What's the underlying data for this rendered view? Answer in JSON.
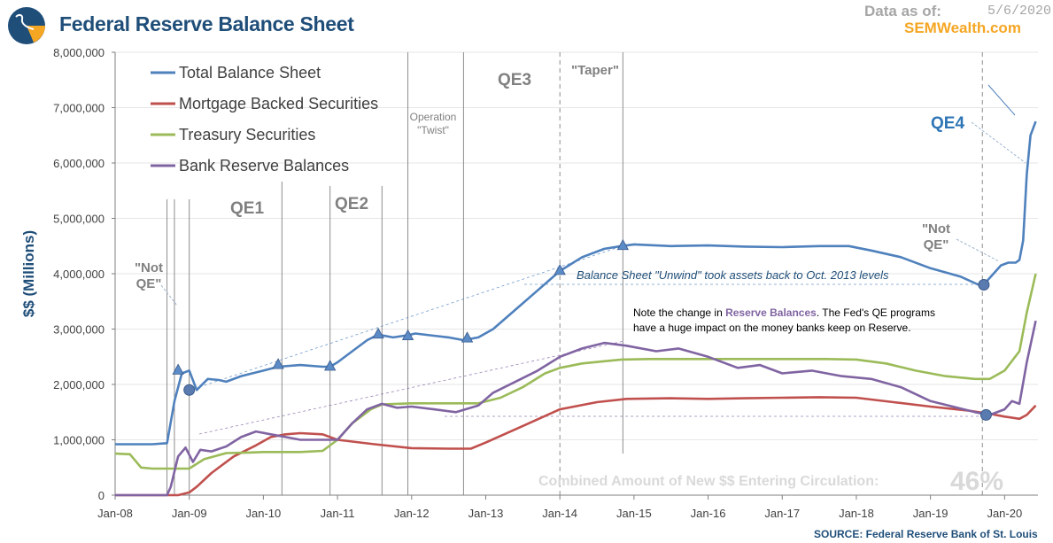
{
  "header": {
    "title": "Federal Reserve Balance Sheet",
    "data_as_of_label": "Data as of:",
    "data_as_of_date": "5/6/2020",
    "brand": "SEMWealth.com",
    "source": "SOURCE:  Federal Reserve Bank of St. Louis"
  },
  "chart_data": {
    "type": "line",
    "title": "Federal Reserve Balance Sheet",
    "xlabel": "",
    "ylabel": "$$ (Millions)",
    "ylim": [
      0,
      8000000
    ],
    "xlim": [
      2008.0,
      2020.45
    ],
    "yticks": [
      0,
      1000000,
      2000000,
      3000000,
      4000000,
      5000000,
      6000000,
      7000000,
      8000000
    ],
    "ytick_labels": [
      "0",
      "1,000,000",
      "2,000,000",
      "3,000,000",
      "4,000,000",
      "5,000,000",
      "6,000,000",
      "7,000,000",
      "8,000,000"
    ],
    "xtick_labels": [
      "Jan-08",
      "Jan-09",
      "Jan-10",
      "Jan-11",
      "Jan-12",
      "Jan-13",
      "Jan-14",
      "Jan-15",
      "Jan-16",
      "Jan-17",
      "Jan-18",
      "Jan-19",
      "Jan-20"
    ],
    "legend_position": "top-left",
    "series": [
      {
        "name": "Total Balance Sheet",
        "color": "#4F81BD",
        "x": [
          2008.0,
          2008.5,
          2008.7,
          2008.8,
          2008.9,
          2009.0,
          2009.1,
          2009.25,
          2009.4,
          2009.5,
          2009.7,
          2009.85,
          2010.0,
          2010.2,
          2010.5,
          2010.8,
          2010.9,
          2011.0,
          2011.2,
          2011.4,
          2011.55,
          2011.75,
          2011.95,
          2012.05,
          2012.3,
          2012.5,
          2012.7,
          2012.9,
          2013.1,
          2013.4,
          2013.7,
          2014.0,
          2014.3,
          2014.6,
          2014.83,
          2015.0,
          2015.5,
          2016.0,
          2016.5,
          2017.0,
          2017.5,
          2017.9,
          2018.2,
          2018.6,
          2019.0,
          2019.4,
          2019.65,
          2019.75,
          2019.85,
          2019.95,
          2020.05,
          2020.15,
          2020.2,
          2020.25,
          2020.3,
          2020.35,
          2020.42
        ],
        "values": [
          920000,
          920000,
          940000,
          1700000,
          2200000,
          2250000,
          1900000,
          2100000,
          2080000,
          2050000,
          2150000,
          2200000,
          2250000,
          2320000,
          2350000,
          2320000,
          2320000,
          2400000,
          2600000,
          2800000,
          2900000,
          2850000,
          2890000,
          2920000,
          2880000,
          2850000,
          2800000,
          2850000,
          3000000,
          3350000,
          3700000,
          4050000,
          4300000,
          4450000,
          4500000,
          4530000,
          4500000,
          4510000,
          4490000,
          4480000,
          4500000,
          4500000,
          4420000,
          4300000,
          4100000,
          3950000,
          3800000,
          3850000,
          4000000,
          4150000,
          4200000,
          4200000,
          4250000,
          4600000,
          5800000,
          6500000,
          6750000
        ]
      },
      {
        "name": "Mortgage Backed Securities",
        "color": "#C0504D",
        "x": [
          2008.0,
          2008.85,
          2009.0,
          2009.1,
          2009.3,
          2009.6,
          2009.9,
          2010.1,
          2010.3,
          2010.5,
          2010.8,
          2011.0,
          2011.5,
          2012.0,
          2012.5,
          2012.8,
          2013.0,
          2013.5,
          2014.0,
          2014.5,
          2014.9,
          2015.5,
          2016.0,
          2016.5,
          2017.0,
          2017.5,
          2018.0,
          2018.5,
          2019.0,
          2019.5,
          2019.8,
          2020.0,
          2020.2,
          2020.3,
          2020.42
        ],
        "values": [
          0,
          0,
          50000,
          150000,
          400000,
          700000,
          900000,
          1050000,
          1100000,
          1120000,
          1100000,
          1000000,
          920000,
          850000,
          840000,
          840000,
          950000,
          1250000,
          1550000,
          1680000,
          1740000,
          1750000,
          1740000,
          1750000,
          1760000,
          1770000,
          1760000,
          1680000,
          1600000,
          1530000,
          1470000,
          1420000,
          1380000,
          1450000,
          1620000
        ]
      },
      {
        "name": "Treasury Securities",
        "color": "#9BBB59",
        "x": [
          2008.0,
          2008.2,
          2008.35,
          2008.5,
          2008.7,
          2009.0,
          2009.2,
          2009.5,
          2009.8,
          2010.0,
          2010.5,
          2010.8,
          2011.0,
          2011.2,
          2011.45,
          2011.6,
          2012.0,
          2012.5,
          2012.9,
          2013.2,
          2013.5,
          2013.8,
          2014.0,
          2014.3,
          2014.6,
          2014.83,
          2015.2,
          2016.0,
          2017.0,
          2017.6,
          2018.0,
          2018.4,
          2018.8,
          2019.2,
          2019.6,
          2019.8,
          2020.0,
          2020.2,
          2020.3,
          2020.42
        ],
        "values": [
          750000,
          740000,
          500000,
          480000,
          480000,
          480000,
          650000,
          760000,
          770000,
          780000,
          780000,
          800000,
          1000000,
          1300000,
          1550000,
          1640000,
          1660000,
          1660000,
          1660000,
          1760000,
          1950000,
          2200000,
          2300000,
          2380000,
          2420000,
          2450000,
          2460000,
          2460000,
          2460000,
          2460000,
          2450000,
          2380000,
          2250000,
          2150000,
          2100000,
          2100000,
          2250000,
          2600000,
          3300000,
          4000000
        ]
      },
      {
        "name": "Bank Reserve Balances",
        "color": "#8064A2",
        "x": [
          2008.0,
          2008.7,
          2008.75,
          2008.85,
          2008.95,
          2009.05,
          2009.15,
          2009.3,
          2009.5,
          2009.7,
          2009.9,
          2010.1,
          2010.3,
          2010.5,
          2010.8,
          2011.0,
          2011.2,
          2011.4,
          2011.6,
          2011.8,
          2012.0,
          2012.3,
          2012.6,
          2012.9,
          2013.1,
          2013.4,
          2013.7,
          2014.0,
          2014.3,
          2014.6,
          2014.9,
          2015.3,
          2015.6,
          2016.0,
          2016.4,
          2016.7,
          2017.0,
          2017.4,
          2017.8,
          2018.2,
          2018.6,
          2019.0,
          2019.3,
          2019.6,
          2019.8,
          2020.0,
          2020.1,
          2020.2,
          2020.3,
          2020.42
        ],
        "values": [
          0,
          0,
          150000,
          700000,
          860000,
          600000,
          820000,
          790000,
          880000,
          1050000,
          1150000,
          1100000,
          1050000,
          1000000,
          1000000,
          1000000,
          1300000,
          1550000,
          1650000,
          1580000,
          1600000,
          1550000,
          1500000,
          1620000,
          1850000,
          2050000,
          2250000,
          2500000,
          2650000,
          2750000,
          2700000,
          2600000,
          2650000,
          2500000,
          2300000,
          2350000,
          2200000,
          2250000,
          2150000,
          2100000,
          1950000,
          1700000,
          1600000,
          1500000,
          1450000,
          1550000,
          1700000,
          1650000,
          2400000,
          3150000
        ]
      }
    ],
    "annotations": {
      "qe_labels": [
        "QE1",
        "QE2",
        "QE3",
        "QE4"
      ],
      "twist_label_line1": "Operation",
      "twist_label_line2": "\"Twist\"",
      "taper_label": "\"Taper\"",
      "notqe1_line1": "\"Not",
      "notqe1_line2": "QE\"",
      "notqe2_line1": "\"Not",
      "notqe2_line2": "QE\"",
      "unwind_text": "Balance Sheet \"Unwind\" took assets back to Oct. 2013 levels",
      "note_line1_a": "Note the change in ",
      "note_line1_b": "Reserve Balances",
      "note_line1_c": ". The Fed's QE programs",
      "note_line2": "have a huge impact on the money banks keep on Reserve.",
      "combined_label": "Combined Amount of New $$ Entering Circulation:",
      "combined_value": "46%",
      "event_lines": [
        2008.7,
        2008.8,
        2009.0,
        2010.25,
        2010.9,
        2011.6,
        2011.95,
        2012.7,
        2014.0,
        2014.85,
        2019.7
      ],
      "markers": [
        {
          "series": "Total Balance Sheet",
          "x": 2008.85,
          "y": 2250000,
          "shape": "triangle"
        },
        {
          "series": "Total Balance Sheet",
          "x": 2009.0,
          "y": 1900000,
          "shape": "circle"
        },
        {
          "series": "Total Balance Sheet",
          "x": 2010.2,
          "y": 2350000,
          "shape": "triangle"
        },
        {
          "series": "Total Balance Sheet",
          "x": 2010.9,
          "y": 2320000,
          "shape": "triangle"
        },
        {
          "series": "Total Balance Sheet",
          "x": 2011.55,
          "y": 2900000,
          "shape": "triangle"
        },
        {
          "series": "Total Balance Sheet",
          "x": 2011.95,
          "y": 2870000,
          "shape": "triangle"
        },
        {
          "series": "Total Balance Sheet",
          "x": 2012.75,
          "y": 2830000,
          "shape": "triangle"
        },
        {
          "series": "Total Balance Sheet",
          "x": 2014.0,
          "y": 4050000,
          "shape": "triangle"
        },
        {
          "series": "Total Balance Sheet",
          "x": 2014.85,
          "y": 4500000,
          "shape": "triangle"
        },
        {
          "series": "Total Balance Sheet",
          "x": 2019.72,
          "y": 3800000,
          "shape": "circle"
        },
        {
          "series": "Bank Reserve Balances",
          "x": 2019.75,
          "y": 1450000,
          "shape": "circle"
        }
      ]
    }
  }
}
